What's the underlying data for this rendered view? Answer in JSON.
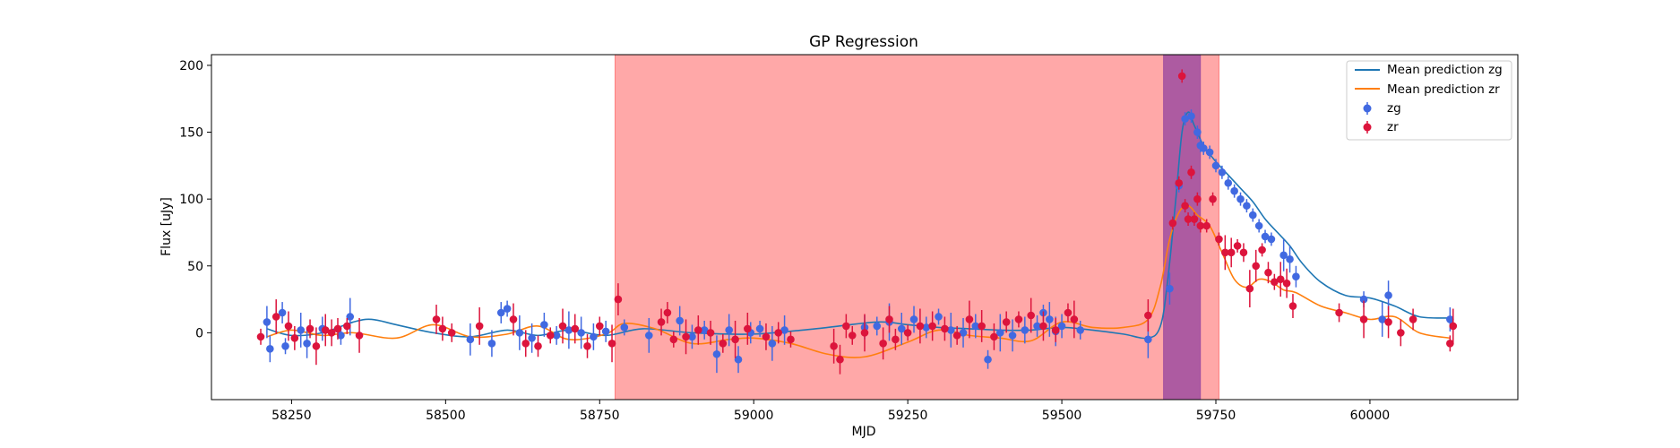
{
  "chart_data": {
    "type": "line",
    "title": "GP Regression",
    "xlabel": "MJD",
    "ylabel": "Flux [uJy]",
    "xlim": [
      58120,
      60240
    ],
    "ylim": [
      -50,
      208
    ],
    "xticks": [
      58250,
      58500,
      58750,
      59000,
      59250,
      59500,
      59750,
      60000
    ],
    "yticks": [
      0,
      50,
      100,
      150,
      200
    ],
    "legend_position": "top-right",
    "legend": [
      "Mean prediction zg",
      "Mean prediction zr",
      "zg",
      "zr"
    ],
    "shaded_regions": [
      {
        "x0": 58775,
        "x1": 59755,
        "color": "#ff0000",
        "opacity": 0.34
      },
      {
        "x0": 59665,
        "x1": 59725,
        "color": "#6a1b9a",
        "opacity": 0.55
      }
    ],
    "series": [
      {
        "name": "Mean prediction zg",
        "kind": "line",
        "color": "#1f77b4",
        "x": [
          58210,
          58250,
          58300,
          58350,
          58380,
          58420,
          58480,
          58540,
          58600,
          58650,
          58700,
          58760,
          58820,
          58900,
          59000,
          59100,
          59200,
          59250,
          59300,
          59350,
          59400,
          59450,
          59500,
          59550,
          59600,
          59640,
          59660,
          59672,
          59685,
          59695,
          59705,
          59715,
          59730,
          59750,
          59770,
          59790,
          59810,
          59830,
          59850,
          59870,
          59890,
          59920,
          59960,
          60000,
          60040,
          60080,
          60130
        ],
        "y": [
          3,
          -2,
          0,
          8,
          10,
          6,
          0,
          -3,
          2,
          -2,
          2,
          -2,
          3,
          0,
          -1,
          3,
          8,
          6,
          4,
          3,
          2,
          2,
          4,
          2,
          -1,
          -4,
          5,
          40,
          100,
          150,
          165,
          155,
          140,
          128,
          118,
          108,
          98,
          85,
          75,
          65,
          52,
          38,
          28,
          26,
          20,
          12,
          11
        ]
      },
      {
        "name": "Mean prediction zr",
        "kind": "line",
        "color": "#ff7f0e",
        "x": [
          58210,
          58250,
          58300,
          58350,
          58420,
          58480,
          58540,
          58600,
          58650,
          58700,
          58760,
          58790,
          58840,
          58900,
          58960,
          59000,
          59060,
          59120,
          59180,
          59250,
          59300,
          59350,
          59400,
          59450,
          59500,
          59550,
          59600,
          59640,
          59660,
          59675,
          59690,
          59705,
          59720,
          59740,
          59760,
          59780,
          59800,
          59820,
          59840,
          59860,
          59880,
          59920,
          59960,
          60000,
          60040,
          60080,
          60130
        ],
        "y": [
          -3,
          2,
          -2,
          0,
          -4,
          6,
          -3,
          -1,
          5,
          -5,
          -1,
          7,
          3,
          -8,
          -5,
          -4,
          -8,
          -16,
          -18,
          -7,
          2,
          -2,
          -4,
          -6,
          8,
          4,
          4,
          10,
          35,
          70,
          90,
          95,
          88,
          80,
          60,
          40,
          34,
          40,
          38,
          32,
          30,
          20,
          15,
          10,
          12,
          0,
          -4
        ]
      },
      {
        "name": "zg",
        "kind": "errorbar-scatter",
        "color": "#4169e1",
        "x": [
          58210,
          58215,
          58235,
          58240,
          58265,
          58275,
          58300,
          58330,
          58345,
          58540,
          58575,
          58590,
          58600,
          58620,
          58640,
          58660,
          58680,
          58700,
          58720,
          58740,
          58760,
          58790,
          58830,
          58880,
          58900,
          58920,
          58940,
          58960,
          58975,
          58995,
          59010,
          59030,
          59050,
          59180,
          59200,
          59220,
          59240,
          59260,
          59280,
          59300,
          59320,
          59340,
          59360,
          59380,
          59400,
          59420,
          59440,
          59460,
          59470,
          59480,
          59490,
          59500,
          59530,
          59640,
          59675,
          59690,
          59700,
          59710,
          59720,
          59725,
          59730,
          59740,
          59750,
          59760,
          59770,
          59780,
          59790,
          59800,
          59810,
          59820,
          59830,
          59840,
          59860,
          59870,
          59880,
          59990,
          60020,
          60030,
          60130
        ],
        "y": [
          8,
          -12,
          15,
          -10,
          2,
          -8,
          3,
          -2,
          12,
          -5,
          -8,
          15,
          18,
          0,
          -4,
          6,
          -2,
          2,
          0,
          -3,
          1,
          4,
          -2,
          9,
          -3,
          2,
          -16,
          2,
          -20,
          0,
          3,
          -8,
          2,
          4,
          5,
          8,
          3,
          10,
          4,
          12,
          2,
          0,
          5,
          -20,
          0,
          -2,
          2,
          5,
          15,
          10,
          1,
          5,
          2,
          -5,
          33,
          110,
          160,
          162,
          150,
          140,
          138,
          135,
          125,
          120,
          112,
          106,
          100,
          95,
          88,
          80,
          72,
          70,
          58,
          55,
          42,
          25,
          10,
          28,
          10
        ]
      },
      {
        "name": "zr",
        "kind": "errorbar-scatter",
        "color": "#dc143c",
        "x": [
          58200,
          58225,
          58245,
          58255,
          58280,
          58290,
          58305,
          58315,
          58325,
          58340,
          58360,
          58485,
          58495,
          58510,
          58555,
          58610,
          58630,
          58650,
          58670,
          58690,
          58710,
          58730,
          58750,
          58770,
          58780,
          58850,
          58860,
          58870,
          58890,
          58910,
          58930,
          58950,
          58970,
          58990,
          59020,
          59040,
          59060,
          59130,
          59140,
          59150,
          59160,
          59180,
          59210,
          59220,
          59230,
          59250,
          59270,
          59290,
          59310,
          59330,
          59350,
          59370,
          59390,
          59410,
          59430,
          59450,
          59470,
          59490,
          59510,
          59520,
          59640,
          59680,
          59690,
          59695,
          59700,
          59705,
          59710,
          59715,
          59720,
          59725,
          59735,
          59745,
          59755,
          59765,
          59775,
          59785,
          59795,
          59805,
          59815,
          59825,
          59835,
          59845,
          59855,
          59865,
          59875,
          59950,
          59990,
          60030,
          60050,
          60070,
          60130,
          60135
        ],
        "y": [
          -3,
          12,
          5,
          -4,
          3,
          -10,
          2,
          0,
          3,
          5,
          -2,
          10,
          3,
          0,
          5,
          10,
          -8,
          -10,
          -2,
          5,
          3,
          -10,
          5,
          -8,
          25,
          8,
          15,
          -5,
          -3,
          2,
          0,
          -8,
          -5,
          3,
          -3,
          0,
          -5,
          -10,
          -20,
          5,
          -2,
          0,
          -8,
          10,
          -5,
          0,
          5,
          5,
          3,
          -2,
          10,
          5,
          -3,
          8,
          10,
          13,
          5,
          2,
          15,
          10,
          13,
          82,
          112,
          192,
          95,
          85,
          120,
          85,
          100,
          80,
          80,
          100,
          70,
          60,
          60,
          65,
          60,
          33,
          50,
          62,
          45,
          38,
          40,
          37,
          20,
          15,
          10,
          8,
          0,
          10,
          -8,
          5
        ]
      }
    ]
  }
}
